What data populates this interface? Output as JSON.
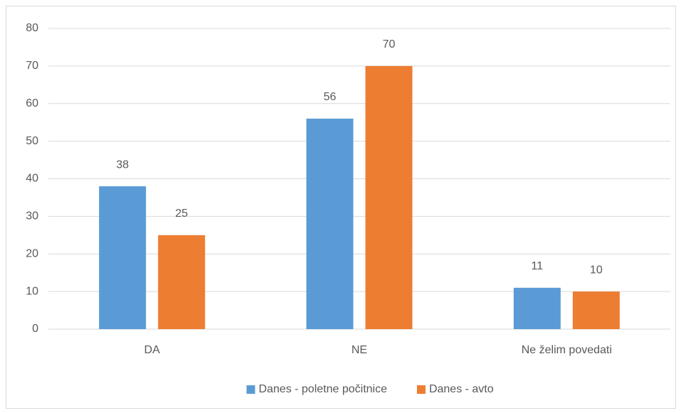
{
  "chart_data": {
    "type": "bar",
    "categories": [
      "DA",
      "NE",
      "Ne želim povedati"
    ],
    "series": [
      {
        "name": "Danes - poletne počitnice",
        "color": "#5b9bd5",
        "values": [
          38,
          56,
          11
        ]
      },
      {
        "name": "Danes - avto",
        "color": "#ed7d31",
        "values": [
          25,
          70,
          10
        ]
      }
    ],
    "ylim": [
      0,
      80
    ],
    "yticks": [
      0,
      10,
      20,
      30,
      40,
      50,
      60,
      70,
      80
    ],
    "grid": true,
    "legend": "bottom"
  }
}
